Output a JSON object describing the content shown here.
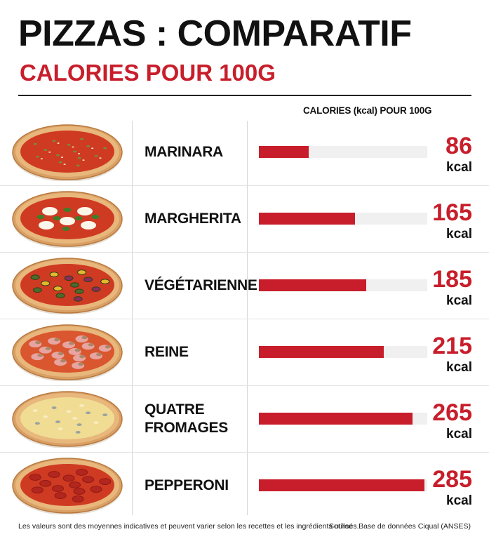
{
  "title": "PIZZAS : COMPARATIF",
  "subtitle": "CALORIES POUR 100G",
  "column_header": "CALORIES (kcal) POUR 100G",
  "footer": {
    "note": "Les valeurs sont des moyennes indicatives et peuvent varier selon les recettes et les ingrédients utilisés.",
    "source": "Source : Base de données Ciqual (ANSES)"
  },
  "colors": {
    "accent": "#c81e2b",
    "track": "#f0f0f0"
  },
  "chart_data": {
    "type": "bar",
    "orientation": "horizontal",
    "title": "PIZZAS : COMPARATIF",
    "subtitle": "CALORIES POUR 100G",
    "ylabel": "CALORIES (kcal) POUR 100G",
    "unit": "kcal",
    "xlim": [
      0,
      290
    ],
    "categories": [
      "MARINARA",
      "MARGHERITA",
      "VÉGÉTARIENNE",
      "REINE",
      "QUATRE\nFROMAGES",
      "PEPPERONI"
    ],
    "values": [
      86,
      165,
      185,
      215,
      265,
      285
    ],
    "pizza_icons": [
      "marinara-pizza",
      "margherita-pizza",
      "vegetarian-pizza",
      "reine-pizza",
      "four-cheese-pizza",
      "pepperoni-pizza"
    ]
  }
}
